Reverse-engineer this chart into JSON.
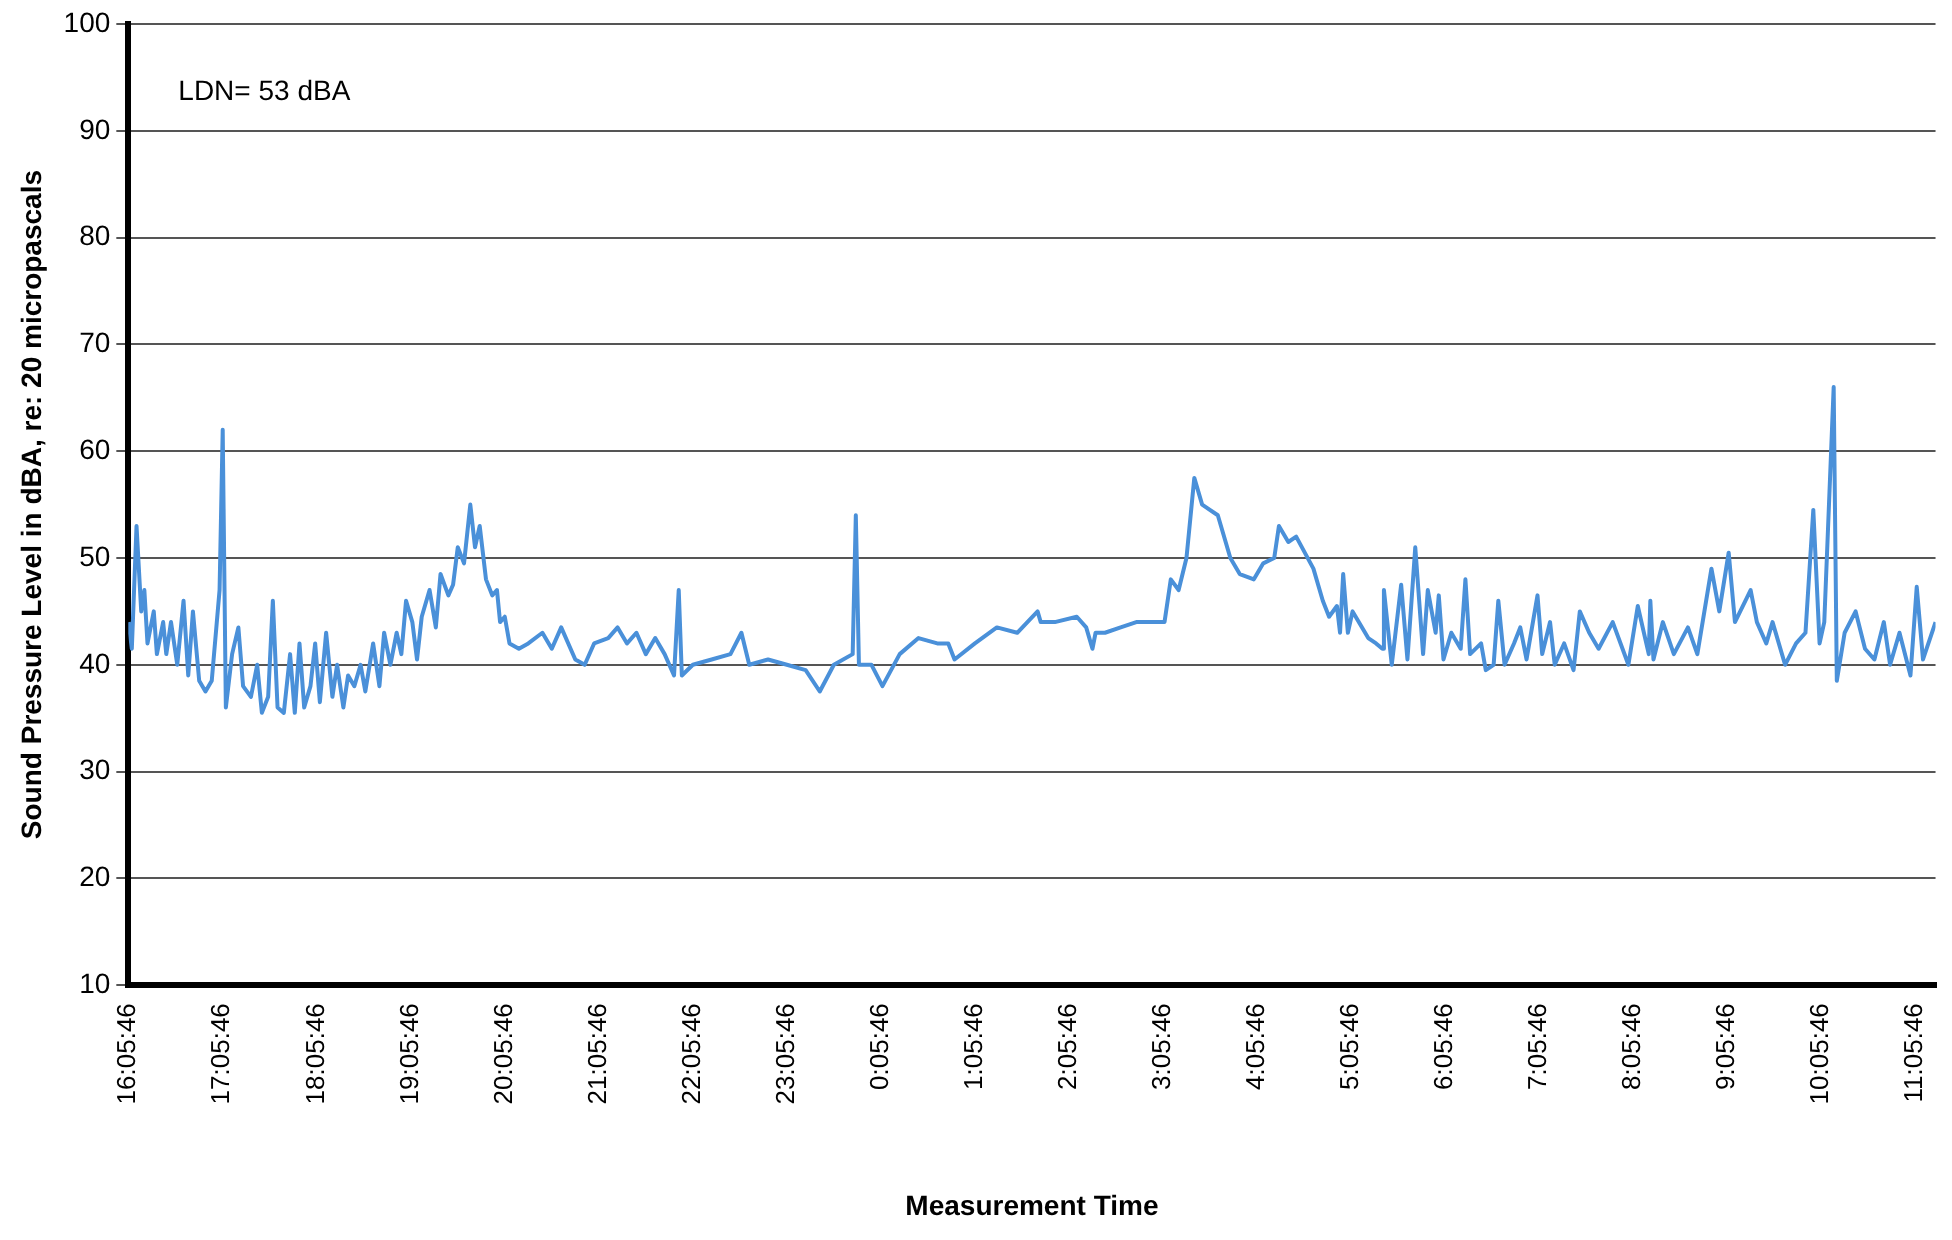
{
  "chart_data": {
    "type": "line",
    "xlabel": "Measurement Time",
    "ylabel": "Sound Pressure Level in dBA, re: 20 micropascals",
    "annotations": [
      "LDN= 53 dBA"
    ],
    "x": [
      "--01-01T16:06",
      "--01-01T16:08",
      "--01-01T16:11",
      "--01-01T16:14",
      "--01-01T16:16",
      "--01-01T16:18",
      "--01-01T16:22",
      "--01-01T16:24",
      "--01-01T16:28",
      "--01-01T16:30",
      "--01-01T16:33",
      "--01-01T16:37",
      "--01-01T16:41",
      "--01-01T16:44",
      "--01-01T16:47",
      "--01-01T16:51",
      "--01-01T16:55",
      "--01-01T16:59",
      "--01-01T17:04",
      "--01-01T17:06",
      "--01-01T17:08",
      "--01-01T17:12",
      "--01-01T17:16",
      "--01-01T17:19",
      "--01-01T17:24",
      "--01-01T17:28",
      "--01-01T17:31",
      "--01-01T17:35",
      "--01-01T17:38",
      "--01-01T17:41",
      "--01-01T17:45",
      "--01-01T17:49",
      "--01-01T17:52",
      "--01-01T17:55",
      "--01-01T17:58",
      "--01-01T18:02",
      "--01-01T18:05",
      "--01-01T18:08",
      "--01-01T18:12",
      "--01-01T18:16",
      "--01-01T18:19",
      "--01-01T18:23",
      "--01-01T18:26",
      "--01-01T18:30",
      "--01-01T18:34",
      "--01-01T18:37",
      "--01-01T18:42",
      "--01-01T18:46",
      "--01-01T18:49",
      "--01-01T18:53",
      "--01-01T18:57",
      "--01-01T19:00",
      "--01-01T19:03",
      "--01-01T19:07",
      "--01-01T19:10",
      "--01-01T19:13",
      "--01-01T19:18",
      "--01-01T19:22",
      "--01-01T19:25",
      "--01-01T19:30",
      "--01-01T19:33",
      "--01-01T19:36",
      "--01-01T19:40",
      "--01-01T19:44",
      "--01-01T19:47",
      "--01-01T19:50",
      "--01-01T19:54",
      "--01-01T19:58",
      "--01-01T20:01",
      "--01-01T20:03",
      "--01-01T20:06",
      "--01-01T20:09",
      "--01-01T20:15",
      "--01-01T20:21",
      "--01-01T20:30",
      "--01-01T20:36",
      "--01-01T20:42",
      "--01-01T20:51",
      "--01-01T20:57",
      "--01-01T21:03",
      "--01-01T21:12",
      "--01-01T21:18",
      "--01-01T21:24",
      "--01-01T21:30",
      "--01-01T21:36",
      "--01-01T21:42",
      "--01-01T21:48",
      "--01-01T21:54",
      "--01-01T21:57",
      "--01-01T21:59",
      "--01-01T22:06",
      "--01-01T22:18",
      "--01-01T22:30",
      "--01-01T22:37",
      "--01-01T22:42",
      "--01-01T22:54",
      "--01-01T23:06",
      "--01-01T23:18",
      "--01-01T23:27",
      "--01-01T23:36",
      "--01-01T23:48",
      "--01-01T23:50",
      "--01-01T23:52",
      "--01-02T00:00",
      "--01-02T00:07",
      "--01-02T00:18",
      "--01-02T00:30",
      "--01-02T00:42",
      "--01-02T00:49",
      "--01-02T00:53",
      "--01-02T01:06",
      "--01-02T01:20",
      "--01-02T01:33",
      "--01-02T01:46",
      "--01-02T01:48",
      "--01-02T01:57",
      "--01-02T02:11",
      "--01-02T02:17",
      "--01-02T02:21",
      "--01-02T02:23",
      "--01-02T02:29",
      "--01-02T02:39",
      "--01-02T02:49",
      "--01-02T03:01",
      "--01-02T03:07",
      "--01-02T03:11",
      "--01-02T03:16",
      "--01-02T03:21",
      "--01-02T03:26",
      "--01-02T03:31",
      "--01-02T03:41",
      "--01-02T03:49",
      "--01-02T03:55",
      "--01-02T04:04",
      "--01-02T04:10",
      "--01-02T04:17",
      "--01-02T04:20",
      "--01-02T04:26",
      "--01-02T04:31",
      "--01-02T04:42",
      "--01-02T04:48",
      "--01-02T04:52",
      "--01-02T04:57",
      "--01-02T04:59",
      "--01-02T05:01",
      "--01-02T05:04",
      "--01-02T05:07",
      "--01-02T05:17",
      "--01-02T05:22",
      "--01-02T05:26",
      "--01-02T05:27",
      "--01-02T05:32",
      "--01-02T05:38",
      "--01-02T05:42",
      "--01-02T05:47",
      "--01-02T05:52",
      "--01-02T05:55",
      "--01-02T06:00",
      "--01-02T06:02",
      "--01-02T06:05",
      "--01-02T06:10",
      "--01-02T06:16",
      "--01-02T06:19",
      "--01-02T06:22",
      "--01-02T06:29",
      "--01-02T06:32",
      "--01-02T06:37",
      "--01-02T06:40",
      "--01-02T06:44",
      "--01-02T06:50",
      "--01-02T06:54",
      "--01-02T06:58",
      "--01-02T07:05",
      "--01-02T07:08",
      "--01-02T07:13",
      "--01-02T07:16",
      "--01-02T07:22",
      "--01-02T07:28",
      "--01-02T07:32",
      "--01-02T07:38",
      "--01-02T07:44",
      "--01-02T07:53",
      "--01-02T08:03",
      "--01-02T08:09",
      "--01-02T08:16",
      "--01-02T08:17",
      "--01-02T08:19",
      "--01-02T08:25",
      "--01-02T08:32",
      "--01-02T08:41",
      "--01-02T08:47",
      "--01-02T08:56",
      "--01-02T09:01",
      "--01-02T09:07",
      "--01-02T09:11",
      "--01-02T09:21",
      "--01-02T09:25",
      "--01-02T09:31",
      "--01-02T09:35",
      "--01-02T09:43",
      "--01-02T09:50",
      "--01-02T09:56",
      "--01-02T10:01",
      "--01-02T10:05",
      "--01-02T10:08",
      "--01-02T10:14",
      "--01-02T10:16",
      "--01-02T10:21",
      "--01-02T10:28",
      "--01-02T10:34",
      "--01-02T10:40",
      "--01-02T10:46",
      "--01-02T10:50",
      "--01-02T10:56",
      "--01-02T11:03",
      "--01-02T11:07",
      "--01-02T11:11",
      "--01-02T11:19"
    ],
    "series": [
      {
        "color": "#4a90d9",
        "values": [
          44,
          41.5,
          53,
          45,
          47,
          42,
          45,
          41,
          44,
          41,
          44,
          40,
          46,
          39,
          45,
          38.5,
          37.5,
          38.5,
          47,
          62,
          36,
          41,
          43.5,
          38,
          37,
          40,
          35.5,
          37,
          46,
          36,
          35.5,
          41,
          35.5,
          42,
          36,
          38,
          42,
          36.5,
          43,
          37,
          40,
          36,
          39,
          38,
          40,
          37.5,
          42,
          38,
          43,
          40,
          43,
          41,
          46,
          44,
          40.5,
          44.5,
          47,
          43.5,
          48.5,
          46.5,
          47.5,
          51,
          49.5,
          55,
          51,
          53,
          48,
          46.5,
          47,
          44,
          44.5,
          42,
          41.5,
          42,
          43,
          41.5,
          43.5,
          40.5,
          40,
          42,
          42.5,
          43.5,
          42,
          43,
          41,
          42.5,
          41,
          39,
          47,
          39,
          40,
          40.5,
          41,
          43,
          40,
          40.5,
          40,
          39.5,
          37.5,
          40,
          41,
          54,
          40,
          40,
          38,
          41,
          42.5,
          42,
          42,
          40.5,
          42,
          43.5,
          43,
          45,
          44,
          44,
          44.5,
          43.5,
          41.5,
          43,
          43,
          43.5,
          44,
          44,
          44,
          48,
          47,
          50,
          57.5,
          55,
          54,
          50,
          48.5,
          48,
          49.5,
          50,
          53,
          51.5,
          52,
          49,
          46,
          44.5,
          45.5,
          43,
          48.5,
          43,
          45,
          42.5,
          42,
          41.5,
          47,
          40,
          47.5,
          40.5,
          51,
          41,
          47,
          43,
          46.5,
          40.5,
          43,
          41.5,
          48,
          41,
          42,
          39.5,
          40,
          46,
          40,
          42,
          43.5,
          40.5,
          46.5,
          41,
          44,
          40,
          42,
          39.5,
          45,
          43,
          41.5,
          44,
          40,
          45.5,
          41,
          46,
          40.5,
          44,
          41,
          43.5,
          41,
          49,
          45,
          50.5,
          44,
          47,
          44,
          42,
          44,
          40,
          42,
          43,
          54.5,
          42,
          44,
          66,
          38.5,
          43,
          45,
          41.5,
          40.5,
          44,
          40,
          43,
          39,
          47.3,
          40.5,
          44
        ]
      }
    ],
    "xlim": [
      "--01-01T16:05:46",
      "--01-02T11:19"
    ],
    "xticks": [
      {
        "value": "--01-01T16:05:46",
        "label": "16:05:46"
      },
      {
        "value": "--01-01T17:05:46",
        "label": "17:05:46"
      },
      {
        "value": "--01-01T18:05:46",
        "label": "18:05:46"
      },
      {
        "value": "--01-01T19:05:46",
        "label": "19:05:46"
      },
      {
        "value": "--01-01T20:05:46",
        "label": "20:05:46"
      },
      {
        "value": "--01-01T21:05:46",
        "label": "21:05:46"
      },
      {
        "value": "--01-01T22:05:46",
        "label": "22:05:46"
      },
      {
        "value": "--01-01T23:05:46",
        "label": "23:05:46"
      },
      {
        "value": "--01-02T00:05:46",
        "label": "0:05:46"
      },
      {
        "value": "--01-02T01:05:46",
        "label": "1:05:46"
      },
      {
        "value": "--01-02T02:05:46",
        "label": "2:05:46"
      },
      {
        "value": "--01-02T03:05:46",
        "label": "3:05:46"
      },
      {
        "value": "--01-02T04:05:46",
        "label": "4:05:46"
      },
      {
        "value": "--01-02T05:05:46",
        "label": "5:05:46"
      },
      {
        "value": "--01-02T06:05:46",
        "label": "6:05:46"
      },
      {
        "value": "--01-02T07:05:46",
        "label": "7:05:46"
      },
      {
        "value": "--01-02T08:05:46",
        "label": "8:05:46"
      },
      {
        "value": "--01-02T09:05:46",
        "label": "9:05:46"
      },
      {
        "value": "--01-02T10:05:46",
        "label": "10:05:46"
      },
      {
        "value": "--01-02T11:05:46",
        "label": "11:05:46"
      }
    ],
    "ylim": [
      10,
      100
    ],
    "yticks": [
      10,
      20,
      30,
      40,
      50,
      60,
      70,
      80,
      90,
      100
    ],
    "grid": "y",
    "legend": false,
    "marker": "none",
    "line_style": "solid"
  }
}
